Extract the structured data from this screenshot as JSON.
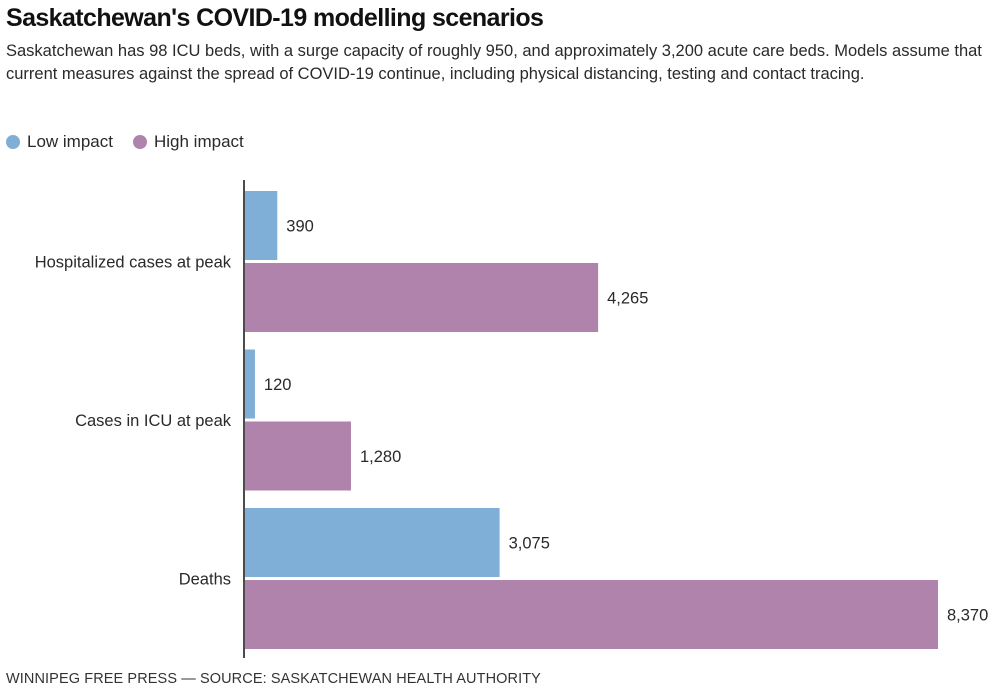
{
  "chart_data": {
    "type": "bar",
    "orientation": "horizontal",
    "title": "Saskatchewan's COVID-19 modelling scenarios",
    "subtitle": "Saskatchewan has 98 ICU beds, with a surge capacity of roughly 950, and approximately 3,200 acute care beds. Models assume that current measures against the spread of COVID-19 continue, including physical distancing, testing and contact tracing.",
    "categories": [
      "Hospitalized cases at peak",
      "Cases in ICU at peak",
      "Deaths"
    ],
    "series": [
      {
        "name": "Low impact",
        "color": "#7fafd6",
        "values": [
          390,
          120,
          3075
        ],
        "labels": [
          "390",
          "120",
          "3,075"
        ]
      },
      {
        "name": "High impact",
        "color": "#b083ad",
        "values": [
          4265,
          1280,
          8370
        ],
        "labels": [
          "4,265",
          "1,280",
          "8,370"
        ]
      }
    ],
    "xlim": [
      0,
      8370
    ],
    "xlabel": "",
    "ylabel": "",
    "grid": false,
    "legend_position": "top-left",
    "source": "WINNIPEG FREE PRESS — SOURCE: SASKATCHEWAN HEALTH AUTHORITY"
  }
}
